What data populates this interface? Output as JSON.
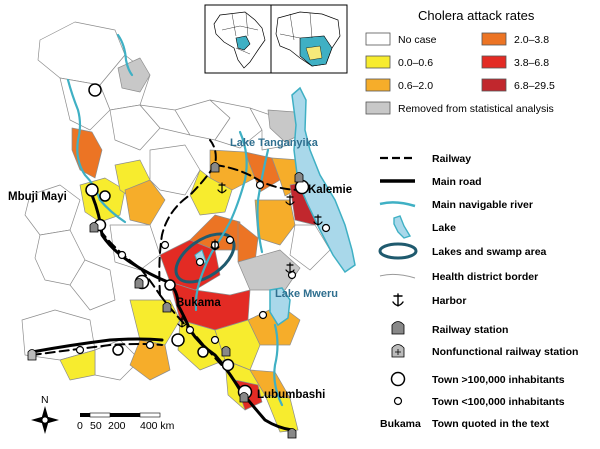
{
  "map": {
    "lakes": {
      "tanganyika": "Lake Tanganyika",
      "mweru": "Lake Mweru"
    },
    "towns": {
      "mbuji_mayi": "Mbuji Mayi",
      "kalemie": "Kalemie",
      "bukama": "Bukama",
      "lubumbashi": "Lubumbashi"
    },
    "scale": {
      "t0": "0",
      "t50": "50",
      "t200": "200",
      "t400": "400 km"
    },
    "north": "N"
  },
  "legend": {
    "title": "Cholera attack rates",
    "classes": [
      {
        "label": "No case",
        "color": "#ffffff"
      },
      {
        "label": "0.0–0.6",
        "color": "#f7ec2e"
      },
      {
        "label": "0.6–2.0",
        "color": "#f6ad2a"
      },
      {
        "label": "2.0–3.8",
        "color": "#ec7424"
      },
      {
        "label": "3.8–6.8",
        "color": "#e32b24"
      },
      {
        "label": "6.8–29.5",
        "color": "#c1272d"
      },
      {
        "label": "Removed from statistical analysis",
        "color": "#c8c8c8"
      }
    ],
    "symbols": [
      {
        "icon": "railway-line",
        "label": "Railway"
      },
      {
        "icon": "main-road-line",
        "label": "Main road"
      },
      {
        "icon": "river-line",
        "label": "Main navigable river"
      },
      {
        "icon": "lake-shape",
        "label": "Lake"
      },
      {
        "icon": "swamp-ellipse",
        "label": "Lakes and swamp area"
      },
      {
        "icon": "district-border-line",
        "label": "Health district border"
      },
      {
        "icon": "anchor-icon",
        "label": "Harbor"
      },
      {
        "icon": "railway-station-icon",
        "label": "Railway station"
      },
      {
        "icon": "nonfunctional-station-icon",
        "label": "Nonfunctional railway station"
      },
      {
        "icon": "large-town-circle",
        "label": "Town >100,000 inhabitants"
      },
      {
        "icon": "small-town-circle",
        "label": "Town <100,000 inhabitants"
      }
    ],
    "quoted": {
      "sample": "Bukama",
      "label": "Town quoted in the text"
    }
  },
  "colors": {
    "river": "#3fb0c4",
    "lake_fill": "#a9d8ea",
    "lake_stroke": "#3fb0c4",
    "swamp_ring": "#1f5a6e",
    "border": "#9a9a9a"
  }
}
